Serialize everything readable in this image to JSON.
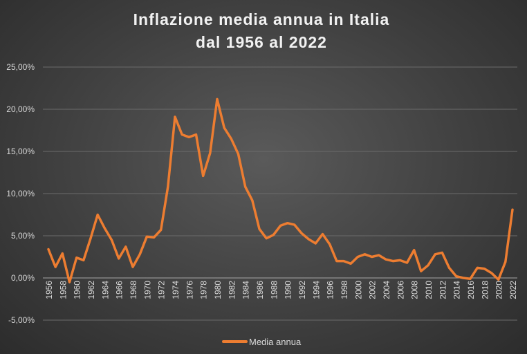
{
  "chart_data": {
    "type": "line",
    "title_lines": [
      "Inflazione media annua in Italia",
      "dal 1956 al 2022"
    ],
    "xlabel": "",
    "ylabel": "",
    "ylim": [
      -5,
      25
    ],
    "y_ticks": [
      "25,00%",
      "20,00%",
      "15,00%",
      "10,00%",
      "5,00%",
      "0,00%",
      "-5,00%"
    ],
    "x_tick_labels": [
      "1956",
      "1958",
      "1960",
      "1962",
      "1964",
      "1966",
      "1968",
      "1970",
      "1972",
      "1974",
      "1976",
      "1978",
      "1980",
      "1982",
      "1984",
      "1986",
      "1988",
      "1990",
      "1992",
      "1994",
      "1996",
      "1998",
      "2000",
      "2002",
      "2004",
      "2006",
      "2008",
      "2010",
      "2012",
      "2014",
      "2016",
      "2018",
      "2020",
      "2022"
    ],
    "grid": true,
    "legend_position": "bottom",
    "x": [
      1956,
      1957,
      1958,
      1959,
      1960,
      1961,
      1962,
      1963,
      1964,
      1965,
      1966,
      1967,
      1968,
      1969,
      1970,
      1971,
      1972,
      1973,
      1974,
      1975,
      1976,
      1977,
      1978,
      1979,
      1980,
      1981,
      1982,
      1983,
      1984,
      1985,
      1986,
      1987,
      1988,
      1989,
      1990,
      1991,
      1992,
      1993,
      1994,
      1995,
      1996,
      1997,
      1998,
      1999,
      2000,
      2001,
      2002,
      2003,
      2004,
      2005,
      2006,
      2007,
      2008,
      2009,
      2010,
      2011,
      2012,
      2013,
      2014,
      2015,
      2016,
      2017,
      2018,
      2019,
      2020,
      2021,
      2022
    ],
    "series": [
      {
        "name": "Media annua",
        "color": "#ED7D31",
        "values": [
          3.4,
          1.3,
          2.9,
          -0.5,
          2.4,
          2.1,
          4.7,
          7.5,
          5.9,
          4.5,
          2.3,
          3.7,
          1.3,
          2.8,
          4.9,
          4.8,
          5.7,
          10.8,
          19.1,
          17.0,
          16.7,
          17.0,
          12.1,
          14.8,
          21.2,
          17.8,
          16.5,
          14.7,
          10.8,
          9.2,
          5.8,
          4.7,
          5.1,
          6.2,
          6.5,
          6.3,
          5.3,
          4.6,
          4.1,
          5.2,
          4.0,
          2.0,
          2.0,
          1.7,
          2.5,
          2.8,
          2.5,
          2.7,
          2.2,
          2.0,
          2.1,
          1.8,
          3.3,
          0.8,
          1.5,
          2.8,
          3.0,
          1.2,
          0.2,
          0.0,
          -0.1,
          1.2,
          1.1,
          0.6,
          -0.2,
          1.9,
          8.1
        ]
      }
    ]
  }
}
